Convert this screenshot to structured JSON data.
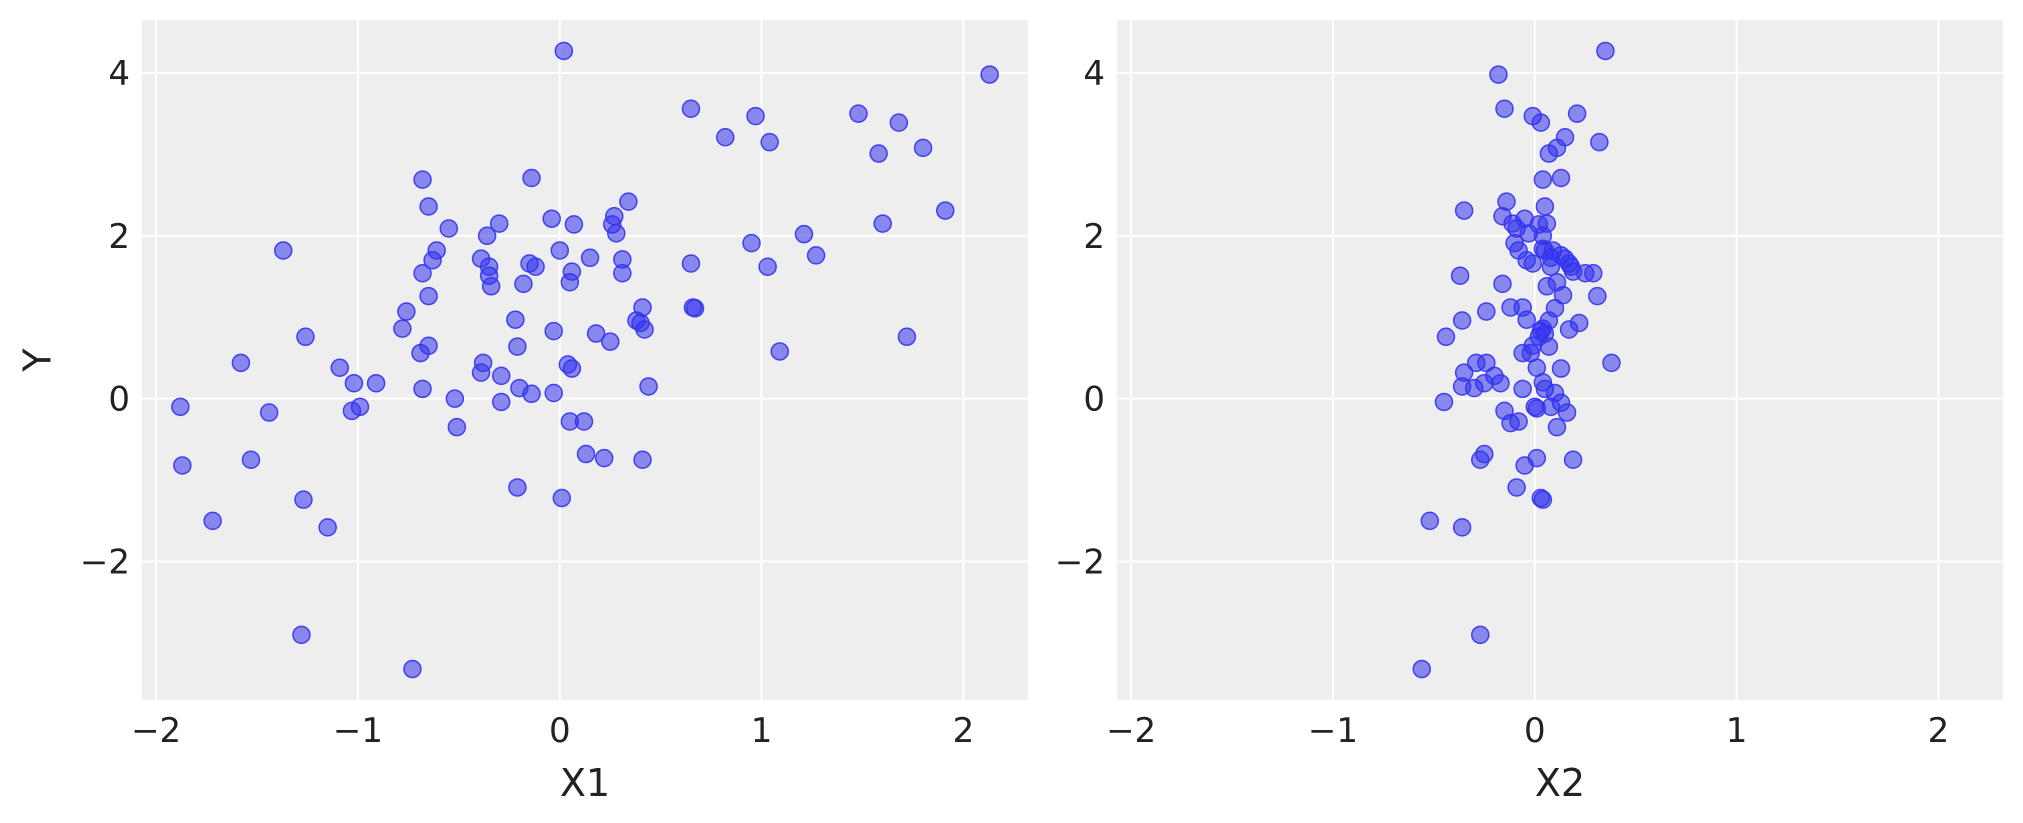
{
  "figure": {
    "style": {
      "background": "#eeeeee",
      "grid": "#ffffff",
      "point_color": "#3333ee"
    }
  },
  "chart_data": [
    {
      "type": "scatter",
      "title": "",
      "xlabel": "X1",
      "ylabel": "Y",
      "xlim": [
        -2.07,
        2.32
      ],
      "ylim": [
        -3.7,
        4.65
      ],
      "grid": true,
      "x_ticks": [
        -2,
        -1,
        0,
        1,
        2
      ],
      "x_tick_labels": [
        "−2",
        "−1",
        "0",
        "1",
        "2"
      ],
      "y_ticks": [
        -2,
        0,
        2,
        4
      ],
      "y_tick_labels": [
        "−2",
        "0",
        "2",
        "4"
      ],
      "x": [
        -1.88,
        -1.87,
        -1.58,
        -1.53,
        -1.44,
        -1.37,
        -1.72,
        -1.26,
        -1.27,
        -1.28,
        -1.15,
        -1.09,
        -1.02,
        -1.03,
        -0.99,
        -0.91,
        -0.68,
        -0.65,
        -0.61,
        -0.63,
        -0.68,
        -0.65,
        -0.76,
        -0.78,
        -0.69,
        -0.65,
        -0.68,
        -0.55,
        -0.52,
        -0.51,
        -0.73,
        -0.39,
        -0.36,
        -0.35,
        -0.35,
        -0.34,
        -0.38,
        -0.39,
        -0.3,
        -0.29,
        -0.29,
        -0.22,
        -0.21,
        -0.2,
        -0.21,
        -0.18,
        -0.15,
        -0.14,
        -0.12,
        -0.14,
        -0.04,
        -0.03,
        -0.03,
        0.0,
        0.02,
        0.05,
        0.06,
        0.04,
        0.06,
        0.05,
        0.01,
        0.07,
        0.12,
        0.13,
        0.15,
        0.18,
        0.22,
        0.25,
        0.26,
        0.27,
        0.28,
        0.31,
        0.31,
        0.34,
        0.38,
        0.4,
        0.41,
        0.42,
        0.41,
        0.44,
        0.65,
        0.65,
        0.66,
        0.67,
        0.82,
        0.95,
        0.97,
        1.03,
        1.04,
        1.09,
        1.21,
        1.27,
        1.48,
        1.58,
        1.6,
        1.68,
        1.72,
        1.8,
        1.91,
        2.13
      ],
      "y": [
        -0.1,
        -0.82,
        0.44,
        -0.75,
        -0.17,
        1.82,
        -1.5,
        0.76,
        -1.24,
        -2.9,
        -1.58,
        0.38,
        0.19,
        -0.15,
        -0.1,
        0.19,
        2.69,
        2.36,
        1.82,
        1.7,
        1.54,
        1.26,
        1.07,
        0.86,
        0.56,
        0.65,
        0.12,
        2.09,
        0.0,
        -0.35,
        -3.32,
        1.72,
        2.0,
        1.62,
        1.51,
        1.38,
        0.44,
        0.32,
        2.15,
        0.28,
        -0.04,
        0.97,
        0.64,
        0.13,
        -1.09,
        1.41,
        1.66,
        2.71,
        1.62,
        0.06,
        2.21,
        0.83,
        0.07,
        1.82,
        4.27,
        1.43,
        1.56,
        0.42,
        0.37,
        -0.28,
        -1.22,
        2.14,
        -0.28,
        -0.68,
        1.73,
        0.8,
        -0.73,
        0.7,
        2.14,
        2.24,
        2.03,
        1.54,
        1.71,
        2.42,
        0.96,
        0.93,
        1.12,
        0.85,
        -0.75,
        0.15,
        1.66,
        3.56,
        1.12,
        1.11,
        3.21,
        1.91,
        3.47,
        1.62,
        3.15,
        0.58,
        2.02,
        1.76,
        3.5,
        3.01,
        2.15,
        3.39,
        0.76,
        3.08,
        2.31,
        3.98
      ]
    },
    {
      "type": "scatter",
      "title": "",
      "xlabel": "X2",
      "ylabel": "",
      "xlim": [
        -2.07,
        2.32
      ],
      "ylim": [
        -3.7,
        4.65
      ],
      "grid": true,
      "x_ticks": [
        -2,
        -1,
        0,
        1,
        2
      ],
      "x_tick_labels": [
        "−2",
        "−1",
        "0",
        "1",
        "2"
      ],
      "y_ticks": [
        -2,
        0,
        2,
        4
      ],
      "y_tick_labels": [
        "−2",
        "0",
        "2",
        "4"
      ],
      "x": [
        -0.18,
        -0.15,
        0.35,
        -0.01,
        0.21,
        0.03,
        0.32,
        0.15,
        0.11,
        0.07,
        0.04,
        0.13,
        -0.14,
        -0.35,
        -0.16,
        -0.11,
        -0.09,
        -0.05,
        -0.03,
        0.05,
        0.02,
        0.06,
        0.04,
        0.09,
        -0.1,
        -0.08,
        -0.04,
        0.05,
        0.08,
        0.13,
        0.17,
        0.18,
        0.25,
        0.29,
        0.31,
        0.11,
        0.19,
        -0.37,
        -0.16,
        -0.36,
        -0.24,
        -0.06,
        -0.12,
        -0.04,
        -0.01,
        0.08,
        0.06,
        0.04,
        0.1,
        0.15,
        -0.44,
        -0.35,
        -0.29,
        -0.24,
        -0.2,
        -0.06,
        -0.01,
        0.03,
        0.05,
        0.07,
        0.02,
        0.13,
        -0.36,
        -0.3,
        -0.25,
        -0.17,
        -0.06,
        -0.02,
        0.01,
        0.04,
        0.1,
        0.13,
        0.38,
        -0.45,
        -0.15,
        -0.08,
        -0.12,
        0.01,
        0.05,
        0.08,
        0.11,
        0.16,
        -0.25,
        -0.27,
        -0.05,
        0.01,
        0.03,
        0.04,
        0.19,
        0.17,
        0.22,
        -0.52,
        -0.36,
        -0.27,
        -0.56,
        -0.09,
        0.04,
        0.0,
        0.07,
        0.14
      ],
      "y": [
        3.98,
        3.56,
        4.27,
        3.47,
        3.5,
        3.39,
        3.15,
        3.21,
        3.08,
        3.01,
        2.69,
        2.71,
        2.42,
        2.31,
        2.24,
        2.15,
        2.09,
        2.21,
        2.03,
        2.36,
        2.14,
        2.15,
        2.0,
        1.82,
        1.91,
        1.82,
        1.7,
        1.82,
        1.73,
        1.76,
        1.66,
        1.62,
        1.54,
        1.54,
        1.26,
        1.43,
        1.56,
        1.51,
        1.41,
        0.96,
        1.07,
        1.12,
        1.12,
        0.97,
        1.66,
        1.62,
        1.38,
        0.86,
        1.11,
        1.72,
        0.76,
        0.32,
        0.44,
        0.44,
        0.28,
        0.56,
        0.65,
        0.83,
        0.8,
        0.64,
        0.76,
        0.37,
        0.15,
        0.13,
        0.19,
        0.19,
        0.12,
        0.56,
        0.38,
        0.2,
        0.07,
        -0.05,
        0.44,
        -0.04,
        -0.15,
        -0.28,
        -0.3,
        -0.12,
        0.12,
        -0.1,
        -0.35,
        -0.17,
        -0.68,
        -0.75,
        -0.82,
        -0.73,
        -1.22,
        -1.24,
        -0.75,
        0.85,
        0.93,
        -1.5,
        -1.58,
        -2.9,
        -3.32,
        -1.09,
        1.84,
        -0.1,
        0.96,
        1.27
      ]
    }
  ]
}
